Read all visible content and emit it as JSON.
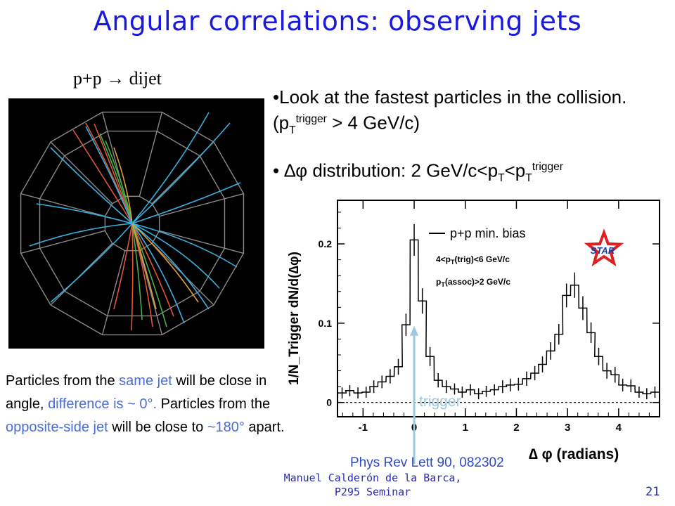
{
  "title": "Angular correlations: observing jets",
  "event_display": {
    "label": "p+p → dijet"
  },
  "bullets": {
    "b1_main": "•Look at the fastest particles in the collision. (p",
    "b1_sub": "T",
    "b1_sup": "trigger",
    "b1_tail": " > 4 GeV/c)",
    "b2_prefix": "•  ∆φ distribution: 2 GeV/c<p",
    "b2_sub1": "T",
    "b2_mid": "<p",
    "b2_sub2": "T",
    "b2_sup": "trigger"
  },
  "explanation": {
    "p1": "Particles from the ",
    "h1": "same jet",
    "p2": " will be close in angle, ",
    "h2": "difference is ~ 0°.",
    "p3": " Particles from the ",
    "h3": "opposite-side jet",
    "p4": " will be close to ",
    "h4": "~180°",
    "p5": " apart."
  },
  "citation": "Phys Rev Lett 90, 082302",
  "footer": {
    "author_line1": "Manuel Calderón de la Barca,",
    "author_line2": "P295 Seminar",
    "page": "21"
  },
  "colors": {
    "title": "#1a1adb",
    "highlight": "#4a6cd4",
    "trigger_arrow": "#9cc8e0",
    "star_logo": "#e02020"
  },
  "chart_data": {
    "type": "line",
    "title": "",
    "xlabel": "∆ φ (radians)",
    "ylabel": "1/N_Trigger dN/d(∆φ)",
    "xlim": [
      -1.5,
      4.8
    ],
    "ylim": [
      -0.018,
      0.255
    ],
    "x_ticks": [
      "-1",
      "0",
      "1",
      "2",
      "3",
      "4"
    ],
    "y_ticks": [
      "0",
      "0.1",
      "0.2"
    ],
    "grid": false,
    "legend": {
      "placement": "top-right",
      "series_label": "p+p min. bias",
      "cut1": "4<p",
      "cut1_sub": "T",
      "cut1_tail": "(trig)<6 GeV/c",
      "cut2": "p",
      "cut2_sub": "T",
      "cut2_tail": "(assoc)>2 GeV/c"
    },
    "annotation": "trigger",
    "logo_text": "STAR",
    "bin_width": 0.157,
    "series": [
      {
        "name": "p+p min. bias",
        "x": [
          -1.41,
          -1.26,
          -1.1,
          -0.94,
          -0.79,
          -0.63,
          -0.47,
          -0.31,
          -0.16,
          0.0,
          0.16,
          0.31,
          0.47,
          0.63,
          0.79,
          0.94,
          1.1,
          1.26,
          1.41,
          1.57,
          1.73,
          1.88,
          2.04,
          2.2,
          2.36,
          2.51,
          2.67,
          2.83,
          2.98,
          3.14,
          3.3,
          3.46,
          3.61,
          3.77,
          3.93,
          4.08,
          4.24,
          4.4,
          4.55,
          4.71
        ],
        "y": [
          0.012,
          0.015,
          0.012,
          0.013,
          0.02,
          0.026,
          0.033,
          0.045,
          0.098,
          0.205,
          0.128,
          0.058,
          0.028,
          0.02,
          0.017,
          0.013,
          0.016,
          0.011,
          0.014,
          0.016,
          0.02,
          0.022,
          0.023,
          0.03,
          0.037,
          0.048,
          0.065,
          0.086,
          0.135,
          0.148,
          0.119,
          0.088,
          0.058,
          0.04,
          0.035,
          0.022,
          0.021,
          0.013,
          0.011,
          0.013
        ],
        "err": [
          0.007,
          0.007,
          0.007,
          0.007,
          0.008,
          0.008,
          0.009,
          0.01,
          0.014,
          0.02,
          0.016,
          0.012,
          0.009,
          0.008,
          0.007,
          0.007,
          0.007,
          0.007,
          0.007,
          0.007,
          0.008,
          0.008,
          0.008,
          0.009,
          0.009,
          0.01,
          0.011,
          0.013,
          0.015,
          0.016,
          0.015,
          0.013,
          0.011,
          0.01,
          0.01,
          0.008,
          0.008,
          0.007,
          0.007,
          0.007
        ]
      }
    ],
    "baseline": 0
  }
}
